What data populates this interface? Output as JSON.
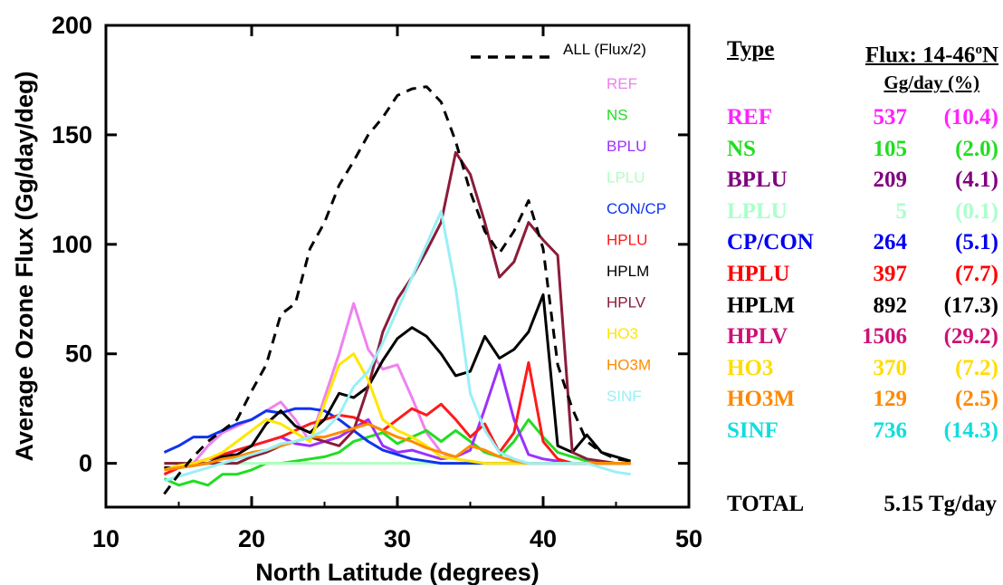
{
  "chart_data": {
    "type": "line",
    "xlabel": "North Latitude (degrees)",
    "ylabel": "Average Ozone Flux (Gg/day/deg)",
    "xlim": [
      10,
      50
    ],
    "ylim": [
      -20,
      200
    ],
    "xticks": [
      10,
      20,
      30,
      40,
      50
    ],
    "yticks": [
      0,
      50,
      100,
      150,
      200
    ],
    "grid": false,
    "legend_position": "top-right inside plot",
    "x": [
      14,
      15,
      16,
      17,
      18,
      19,
      20,
      21,
      22,
      23,
      24,
      25,
      26,
      27,
      28,
      29,
      30,
      31,
      32,
      33,
      34,
      35,
      36,
      37,
      38,
      39,
      40,
      41,
      42,
      43,
      44,
      45,
      46
    ],
    "series": [
      {
        "name": "ALL (Flux/2)",
        "color": "#000000",
        "dash": "dashed",
        "values": [
          -14,
          -5,
          3,
          10,
          15,
          20,
          33,
          45,
          68,
          73,
          98,
          110,
          127,
          138,
          150,
          158,
          168,
          171,
          172,
          165,
          147,
          124,
          106,
          96,
          106,
          120,
          98,
          45,
          25,
          10,
          5,
          2,
          1
        ]
      },
      {
        "name": "REF",
        "color": "#ee82ee",
        "values": [
          -5,
          -2,
          0,
          8,
          14,
          17,
          20,
          24,
          28,
          20,
          10,
          30,
          50,
          73,
          52,
          43,
          45,
          30,
          14,
          5,
          2,
          1,
          0,
          0,
          0,
          0,
          0,
          0,
          0,
          0,
          0,
          0,
          0
        ]
      },
      {
        "name": "NS",
        "color": "#22dd22",
        "values": [
          -7,
          -10,
          -8,
          -10,
          -5,
          -5,
          -3,
          0,
          0,
          1,
          2,
          3,
          5,
          10,
          12,
          14,
          9,
          12,
          15,
          10,
          15,
          10,
          5,
          3,
          10,
          20,
          12,
          5,
          3,
          1,
          0,
          0,
          0
        ]
      },
      {
        "name": "BPLU",
        "color": "#9b30ff",
        "values": [
          -3,
          -1,
          0,
          2,
          3,
          6,
          8,
          10,
          12,
          9,
          8,
          10,
          12,
          16,
          20,
          8,
          5,
          6,
          4,
          2,
          3,
          6,
          25,
          45,
          20,
          4,
          2,
          1,
          0,
          0,
          0,
          0,
          0
        ]
      },
      {
        "name": "LPLU",
        "color": "#b0ffc0",
        "values": [
          0,
          0,
          0,
          0,
          0,
          0,
          0,
          0,
          0,
          0,
          0,
          0,
          0,
          0,
          0,
          0,
          0,
          0,
          0,
          0,
          0,
          0,
          0,
          0,
          0,
          0,
          0,
          0,
          0,
          0,
          0,
          0,
          0
        ]
      },
      {
        "name": "CON/CP",
        "color": "#1133ee",
        "values": [
          5,
          8,
          12,
          12,
          15,
          18,
          20,
          24,
          23,
          25,
          25,
          24,
          20,
          15,
          10,
          6,
          4,
          2,
          1,
          0,
          0,
          0,
          0,
          0,
          0,
          0,
          0,
          0,
          0,
          0,
          0,
          0,
          0
        ]
      },
      {
        "name": "HPLU",
        "color": "#ff1a1a",
        "values": [
          -5,
          -2,
          0,
          2,
          4,
          6,
          8,
          10,
          12,
          15,
          18,
          20,
          22,
          21,
          18,
          15,
          20,
          25,
          22,
          27,
          20,
          12,
          18,
          5,
          14,
          46,
          10,
          2,
          0,
          0,
          0,
          0,
          0
        ]
      },
      {
        "name": "HPLM",
        "color": "#000000",
        "values": [
          -2,
          -2,
          -1,
          0,
          3,
          4,
          8,
          18,
          24,
          17,
          14,
          20,
          32,
          30,
          35,
          47,
          57,
          62,
          58,
          50,
          40,
          42,
          58,
          48,
          52,
          60,
          77,
          8,
          5,
          13,
          5,
          3,
          1
        ]
      },
      {
        "name": "HPLV",
        "color": "#8b1c3a",
        "values": [
          0,
          0,
          0,
          0,
          0,
          0,
          3,
          5,
          8,
          10,
          12,
          10,
          8,
          15,
          35,
          60,
          75,
          85,
          97,
          110,
          142,
          132,
          110,
          85,
          92,
          110,
          102,
          95,
          5,
          2,
          1,
          0,
          0
        ]
      },
      {
        "name": "HO3",
        "color": "#ffe600",
        "values": [
          -3,
          -1,
          0,
          2,
          5,
          10,
          15,
          20,
          18,
          14,
          10,
          27,
          45,
          50,
          38,
          20,
          15,
          12,
          8,
          3,
          2,
          1,
          0,
          0,
          0,
          0,
          0,
          0,
          0,
          0,
          0,
          0,
          0
        ]
      },
      {
        "name": "HO3M",
        "color": "#ff8c00",
        "values": [
          -3,
          -2,
          -1,
          0,
          2,
          3,
          5,
          6,
          8,
          10,
          12,
          12,
          14,
          16,
          18,
          15,
          12,
          10,
          7,
          5,
          3,
          8,
          6,
          3,
          1,
          0,
          0,
          0,
          0,
          0,
          0,
          0,
          0
        ]
      },
      {
        "name": "SINF",
        "color": "#99f0f5",
        "values": [
          -8,
          -6,
          -4,
          -2,
          0,
          2,
          4,
          6,
          9,
          10,
          12,
          15,
          22,
          35,
          42,
          55,
          70,
          85,
          100,
          115,
          80,
          32,
          15,
          5,
          2,
          0,
          0,
          0,
          0,
          0,
          -2,
          -4,
          -5
        ]
      }
    ]
  },
  "table": {
    "header_type": "Type",
    "header_flux_prefix": "Flux: 14-46",
    "header_flux_sup": "o",
    "header_flux_suffix": "N",
    "subheader": "Gg/day (%)",
    "rows": [
      {
        "type": "REF",
        "flux": "537",
        "pct": "(10.4)",
        "color": "#ff22ff"
      },
      {
        "type": "NS",
        "flux": "105",
        "pct": "(2.0)",
        "color": "#22dd22"
      },
      {
        "type": "BPLU",
        "flux": "209",
        "pct": "(4.1)",
        "color": "#800080"
      },
      {
        "type": "LPLU",
        "flux": "5",
        "pct": "(0.1)",
        "color": "#aaffcc"
      },
      {
        "type": "CP/CON",
        "flux": "264",
        "pct": "(5.1)",
        "color": "#0000ee"
      },
      {
        "type": "HPLU",
        "flux": "397",
        "pct": "(7.7)",
        "color": "#ff0000"
      },
      {
        "type": "HPLM",
        "flux": "892",
        "pct": "(17.3)",
        "color": "#000000"
      },
      {
        "type": "HPLV",
        "flux": "1506",
        "pct": "(29.2)",
        "color": "#cc1177"
      },
      {
        "type": "HO3",
        "flux": "370",
        "pct": "(7.2)",
        "color": "#ffdd00"
      },
      {
        "type": "HO3M",
        "flux": "129",
        "pct": "(2.5)",
        "color": "#ff8800"
      },
      {
        "type": "SINF",
        "flux": "736",
        "pct": "(14.3)",
        "color": "#11dddd"
      }
    ],
    "total_label": "TOTAL",
    "total_value": "5.15 Tg/day"
  }
}
